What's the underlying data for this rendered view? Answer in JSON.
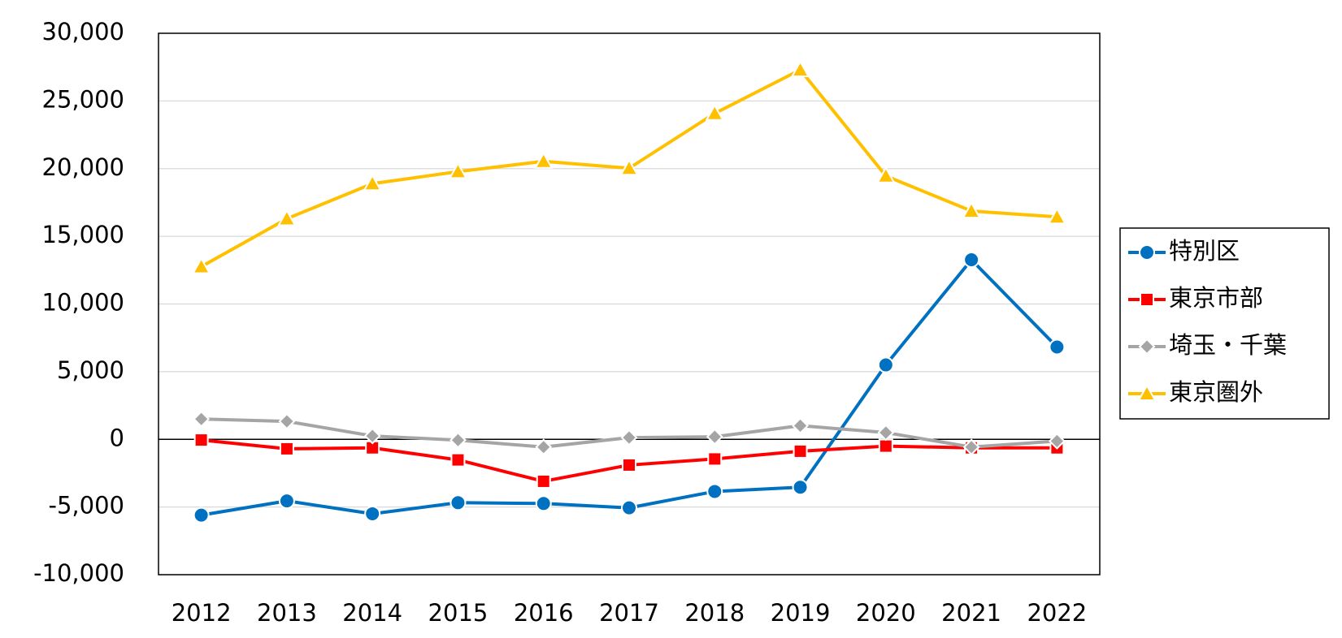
{
  "chart_data": {
    "type": "line",
    "categories": [
      "2012",
      "2013",
      "2014",
      "2015",
      "2016",
      "2017",
      "2018",
      "2019",
      "2020",
      "2021",
      "2022"
    ],
    "series": [
      {
        "name": "特別区",
        "color": "#0070c0",
        "marker": "circle",
        "values": [
          -5600,
          -4550,
          -5500,
          -4680,
          -4740,
          -5060,
          -3850,
          -3540,
          5500,
          13270,
          6820
        ]
      },
      {
        "name": "東京市部",
        "color": "#ff0000",
        "marker": "square",
        "values": [
          -50,
          -700,
          -630,
          -1520,
          -3100,
          -1900,
          -1450,
          -880,
          -500,
          -630,
          -630
        ]
      },
      {
        "name": "埼玉・千葉",
        "color": "#a5a5a5",
        "marker": "diamond",
        "values": [
          1500,
          1330,
          250,
          -60,
          -570,
          130,
          190,
          1010,
          500,
          -570,
          -130
        ]
      },
      {
        "name": "東京圏外",
        "color": "#ffc000",
        "marker": "triangle",
        "values": [
          12760,
          16300,
          18890,
          19780,
          20540,
          20030,
          24080,
          27300,
          19460,
          16870,
          16430
        ]
      }
    ],
    "ylim": [
      -10000,
      30000
    ],
    "yticks": [
      {
        "value": -10000,
        "label": "-10,000"
      },
      {
        "value": -5000,
        "label": "-5,000"
      },
      0,
      {
        "value": 5000,
        "label": "5,000"
      },
      {
        "value": 10000,
        "label": "10,000"
      },
      {
        "value": 15000,
        "label": "15,000"
      },
      {
        "value": 20000,
        "label": "20,000"
      },
      {
        "value": 25000,
        "label": "25,000"
      },
      {
        "value": 30000,
        "label": "30,000"
      }
    ],
    "grid": true,
    "legend": "right"
  }
}
